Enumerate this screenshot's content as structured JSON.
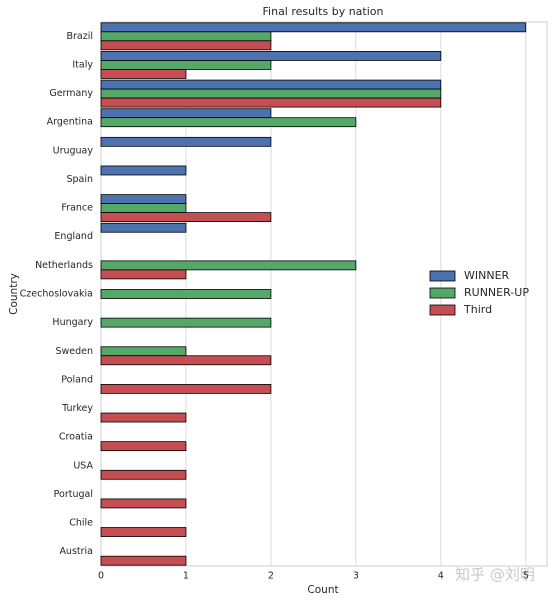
{
  "chart_data": {
    "type": "hbar",
    "title": "Final results by nation",
    "xlabel": "Count",
    "ylabel": "Country",
    "categories": [
      "Brazil",
      "Italy",
      "Germany",
      "Argentina",
      "Uruguay",
      "Spain",
      "France",
      "England",
      "Netherlands",
      "Czechoslovakia",
      "Hungary",
      "Sweden",
      "Poland",
      "Turkey",
      "Croatia",
      "USA",
      "Portugal",
      "Chile",
      "Austria"
    ],
    "series": [
      {
        "name": "WINNER",
        "color": "#4c72b0",
        "values": [
          5,
          4,
          4,
          2,
          2,
          1,
          1,
          1,
          null,
          null,
          null,
          null,
          null,
          null,
          null,
          null,
          null,
          null,
          null
        ]
      },
      {
        "name": "RUNNER-UP",
        "color": "#55a868",
        "values": [
          2,
          2,
          4,
          3,
          null,
          null,
          1,
          null,
          3,
          2,
          2,
          1,
          null,
          null,
          null,
          null,
          null,
          null,
          null
        ]
      },
      {
        "name": "Third",
        "color": "#c44e52",
        "values": [
          2,
          1,
          4,
          null,
          null,
          null,
          2,
          null,
          1,
          null,
          null,
          2,
          2,
          1,
          1,
          1,
          1,
          1,
          1
        ]
      }
    ],
    "xlim": [
      0,
      5.25
    ],
    "xticks": [
      0,
      1,
      2,
      3,
      4,
      5
    ],
    "grid": true,
    "legend": "right",
    "watermark": "知乎 @刘明"
  }
}
